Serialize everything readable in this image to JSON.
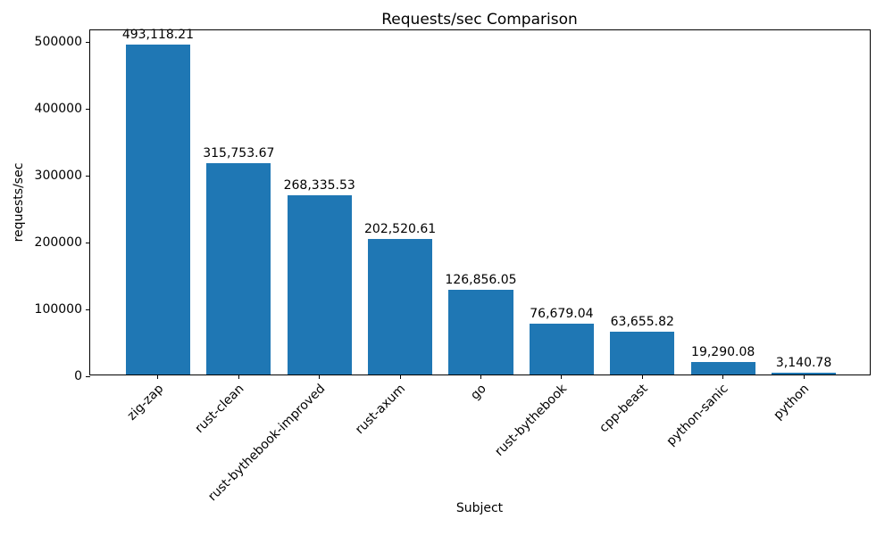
{
  "chart_data": {
    "type": "bar",
    "title": "Requests/sec Comparison",
    "xlabel": "Subject",
    "ylabel": "requests/sec",
    "categories": [
      "zig-zap",
      "rust-clean",
      "rust-bythebook-improved",
      "rust-axum",
      "go",
      "rust-bythebook",
      "cpp-beast",
      "python-sanic",
      "python"
    ],
    "values": [
      493118.21,
      315753.67,
      268335.53,
      202520.61,
      126856.05,
      76679.04,
      63655.82,
      19290.08,
      3140.78
    ],
    "value_labels": [
      "493,118.21",
      "315,753.67",
      "268,335.53",
      "202,520.61",
      "126,856.05",
      "76,679.04",
      "63,655.82",
      "19,290.08",
      "3,140.78"
    ],
    "y_ticks": [
      0,
      100000,
      200000,
      300000,
      400000,
      500000
    ],
    "y_tick_labels": [
      "0",
      "100000",
      "200000",
      "300000",
      "400000",
      "500000"
    ],
    "ylim": [
      0,
      517774
    ],
    "bar_color": "#1f77b4",
    "grid": false,
    "legend_position": "none",
    "x_tick_rotation_deg": 45
  }
}
